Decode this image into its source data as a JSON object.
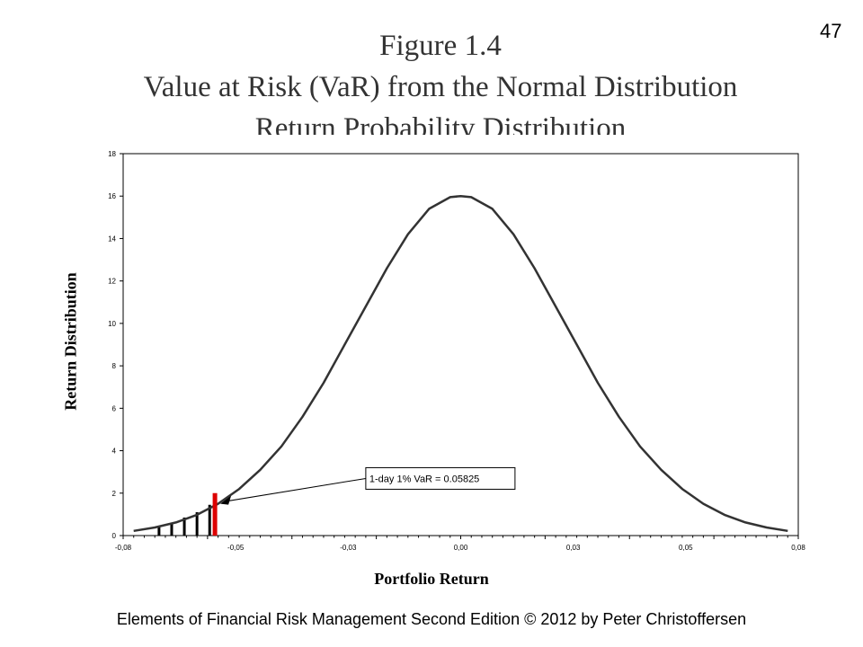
{
  "page_number": "47",
  "title_lines": [
    "Figure 1.4",
    "Value at Risk (VaR) from the Normal Distribution",
    "Return Probability Distribution"
  ],
  "footer": "Elements of Financial Risk Management Second Edition © 2012  by Peter Christoffersen",
  "colors": {
    "curve": "#333333",
    "var_bar": "#dd0000",
    "tail_bars": "#000000"
  },
  "chart_data": {
    "type": "line",
    "title": "Value at Risk (VaR) from the Normal Distribution",
    "subtitle": "Return Probability Distribution",
    "xlabel": "Portfolio Return",
    "ylabel": "Return Distribution",
    "xlim": [
      -0.08,
      0.08
    ],
    "ylim": [
      0,
      18
    ],
    "x_tick_labels": [
      "-0,08",
      "-0,05",
      "-0,03",
      "0,00",
      "0,03",
      "0,05",
      "0,08"
    ],
    "y_tick_labels": [
      "0",
      "2",
      "4",
      "6",
      "8",
      "10",
      "12",
      "14",
      "16",
      "18"
    ],
    "y_ticks": [
      0,
      2,
      4,
      6,
      8,
      10,
      12,
      14,
      16,
      18
    ],
    "grid": false,
    "series": [
      {
        "x": [
          -0.0775,
          -0.0725,
          -0.0675,
          -0.0625,
          -0.0575,
          -0.0525,
          -0.0475,
          -0.0425,
          -0.0375,
          -0.0325,
          -0.0275,
          -0.0225,
          -0.0175,
          -0.0125,
          -0.0075,
          -0.0025,
          0.0,
          0.0025,
          0.0075,
          0.0125,
          0.0175,
          0.0225,
          0.0275,
          0.0325,
          0.0375,
          0.0425,
          0.0475,
          0.0525,
          0.0575,
          0.0625,
          0.0675,
          0.0725,
          0.0775
        ],
        "y": [
          0.22,
          0.38,
          0.62,
          0.98,
          1.5,
          2.2,
          3.1,
          4.2,
          5.6,
          7.2,
          9.0,
          10.8,
          12.6,
          14.2,
          15.4,
          15.95,
          16.0,
          15.95,
          15.4,
          14.2,
          12.6,
          10.8,
          9.0,
          7.2,
          5.6,
          4.2,
          3.1,
          2.2,
          1.5,
          0.98,
          0.62,
          0.38,
          0.22
        ]
      }
    ],
    "tail_bars": [
      {
        "x": -0.0715,
        "y": 0.4
      },
      {
        "x": -0.0685,
        "y": 0.55
      },
      {
        "x": -0.0655,
        "y": 0.85
      },
      {
        "x": -0.0625,
        "y": 1.1
      },
      {
        "x": -0.0595,
        "y": 1.45
      }
    ],
    "var_bar": {
      "x": -0.05825,
      "y": 2.0
    },
    "annotation": {
      "text": "1-day 1% VaR = 0.05825",
      "box_x": -0.0225,
      "box_y": 3.2,
      "arrow_to": {
        "x": -0.05825,
        "y": 1.5
      }
    }
  }
}
